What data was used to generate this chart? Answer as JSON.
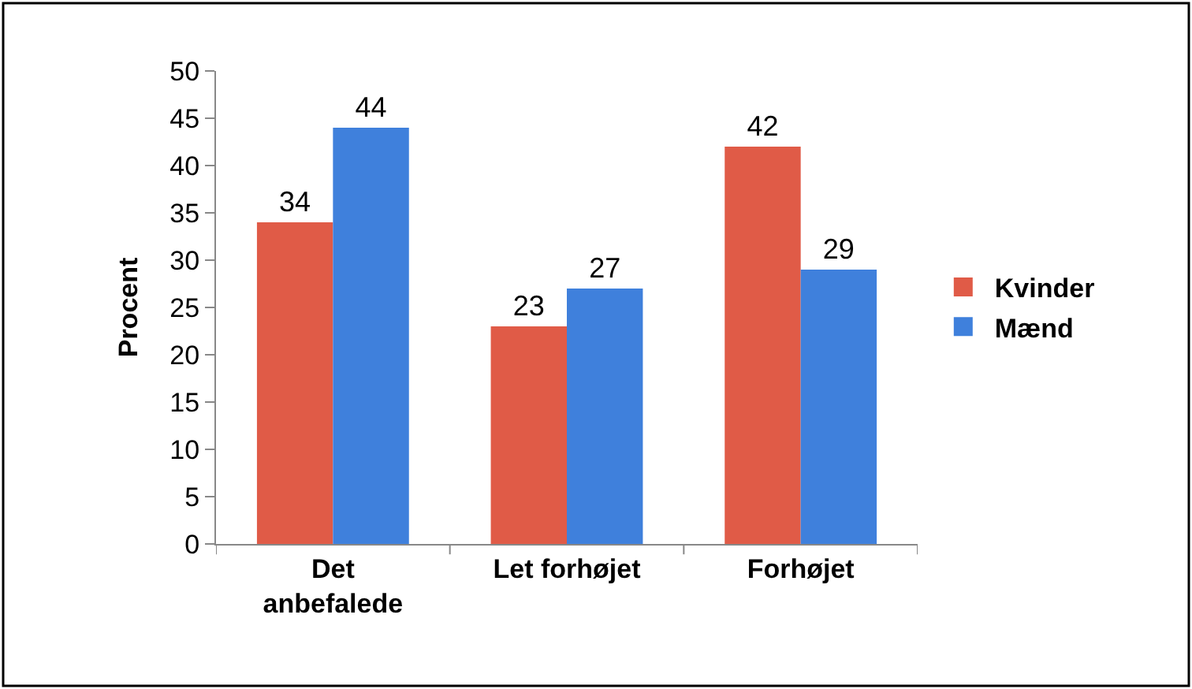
{
  "chart_data": {
    "type": "bar",
    "ylabel": "Procent",
    "categories": [
      "Det anbefalede",
      "Let forhøjet",
      "Forhøjet"
    ],
    "series": [
      {
        "name": "Kvinder",
        "color": "#e05b47",
        "values": [
          34,
          23,
          42
        ]
      },
      {
        "name": "Mænd",
        "color": "#3f80dc",
        "values": [
          44,
          27,
          29
        ]
      }
    ],
    "ylim": [
      0,
      50
    ],
    "yticks": [
      0,
      5,
      10,
      15,
      20,
      25,
      30,
      35,
      40,
      45,
      50
    ],
    "data_labels": true,
    "legend": "right"
  }
}
